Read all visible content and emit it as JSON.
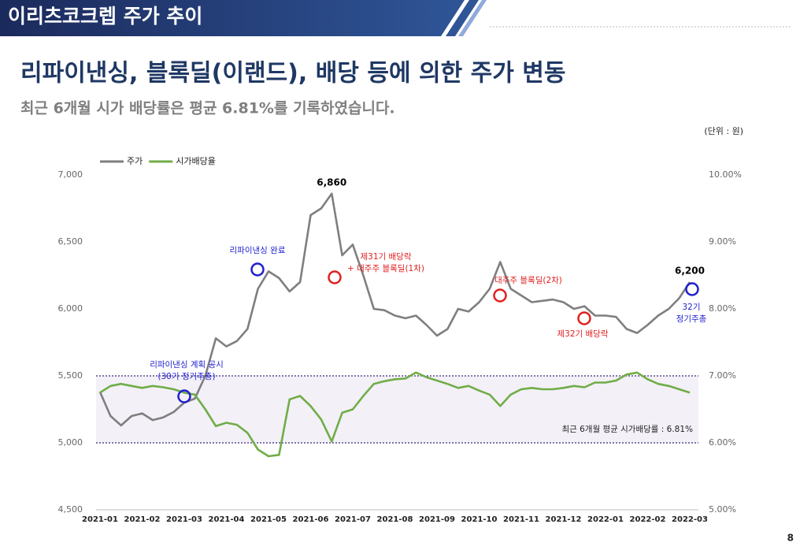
{
  "header": {
    "title": "이리츠코크렙 주가 추이"
  },
  "heading": "리파이낸싱, 블록딜(이랜드), 배당 등에 의한 주가 변동",
  "subtitle": "최근 6개월 시가 배당률은 평균 6.81%를 기록하였습니다.",
  "unit": "(단위 : 원)",
  "page_number": 8,
  "chart_data": {
    "type": "line",
    "categories": [
      "2021-01",
      null,
      null,
      null,
      "2021-02",
      null,
      null,
      null,
      "2021-03",
      null,
      null,
      null,
      "2021-04",
      null,
      null,
      null,
      "2021-05",
      null,
      null,
      null,
      "2021-06",
      null,
      null,
      null,
      "2021-07",
      null,
      null,
      null,
      "2021-08",
      null,
      null,
      null,
      "2021-09",
      null,
      null,
      null,
      "2021-10",
      null,
      null,
      null,
      "2021-11",
      null,
      null,
      null,
      "2021-12",
      null,
      null,
      null,
      "2022-01",
      null,
      null,
      null,
      "2022-02",
      null,
      null,
      null,
      "2022-03"
    ],
    "series": [
      {
        "name": "주가",
        "color": "#7f7f7f",
        "values": [
          5380,
          5200,
          5130,
          5200,
          5220,
          5170,
          5190,
          5230,
          5300,
          5330,
          5500,
          5780,
          5720,
          5760,
          5850,
          6150,
          6280,
          6230,
          6130,
          6200,
          6700,
          6750,
          6860,
          6400,
          6480,
          6250,
          6000,
          5990,
          5950,
          5930,
          5950,
          5880,
          5800,
          5850,
          6000,
          5980,
          6050,
          6150,
          6350,
          6150,
          6100,
          6050,
          6060,
          6070,
          6050,
          6000,
          6020,
          5950,
          5950,
          5940,
          5850,
          5820,
          5880,
          5950,
          6000,
          6080,
          6200
        ],
        "value_labels": [
          null,
          null,
          null,
          null,
          null,
          null,
          null,
          null,
          null,
          null,
          null,
          null,
          null,
          null,
          null,
          null,
          null,
          null,
          null,
          null,
          null,
          null,
          "6,860",
          null,
          null,
          null,
          null,
          null,
          null,
          null,
          null,
          null,
          null,
          null,
          null,
          null,
          null,
          null,
          null,
          null,
          null,
          null,
          null,
          null,
          null,
          null,
          null,
          null,
          null,
          null,
          null,
          null,
          null,
          null,
          null,
          null,
          "6,200"
        ]
      },
      {
        "name": "시가배당율",
        "color": "#70ad47",
        "axis": "y2",
        "values": [
          6.75,
          6.85,
          6.88,
          6.85,
          6.82,
          6.85,
          6.83,
          6.8,
          6.75,
          6.72,
          6.5,
          6.25,
          6.3,
          6.27,
          6.15,
          5.9,
          5.8,
          5.82,
          6.65,
          6.7,
          6.55,
          6.35,
          6.02,
          6.45,
          6.5,
          6.7,
          6.88,
          6.92,
          6.95,
          6.96,
          7.05,
          6.98,
          6.93,
          6.88,
          6.82,
          6.85,
          6.78,
          6.72,
          6.55,
          6.72,
          6.8,
          6.82,
          6.8,
          6.8,
          6.82,
          6.85,
          6.83,
          6.9,
          6.9,
          6.93,
          7.02,
          7.05,
          6.95,
          6.88,
          6.85,
          6.8,
          6.75
        ]
      }
    ],
    "ylim": [
      4500,
      7000
    ],
    "yticks": [
      {
        "value": 4500,
        "label": "4,500"
      },
      {
        "value": 5000,
        "label": "5,000"
      },
      {
        "value": 5500,
        "label": "5,500"
      },
      {
        "value": 6000,
        "label": "6,000"
      },
      {
        "value": 6500,
        "label": "6,500"
      },
      {
        "value": 7000,
        "label": "7,000"
      }
    ],
    "y2lim": [
      5,
      10
    ],
    "y2ticks": [
      {
        "value": 5,
        "label": "5.00%"
      },
      {
        "value": 6,
        "label": "6.00%"
      },
      {
        "value": 7,
        "label": "7.00%"
      },
      {
        "value": 8,
        "label": "8.00%"
      },
      {
        "value": 9,
        "label": "9.00%"
      },
      {
        "value": 10,
        "label": "10.00%"
      }
    ],
    "band_y2": [
      6,
      7
    ],
    "band_label": "최근 6개월 평균 시가배당률 : 6.81%",
    "annotations": [
      {
        "lines": [
          "리파이낸싱 계획 공시",
          "(30기 정기주총)"
        ],
        "color": "#1f1fd0"
      },
      {
        "lines": [
          "리파이낸싱 완료"
        ],
        "color": "#1f1fd0"
      },
      {
        "lines": [
          "제31기 배당락",
          "+ 대주주 블록딜(1차)"
        ],
        "color": "#e02020"
      },
      {
        "lines": [
          "대주주 블록딜(2차)"
        ],
        "color": "#e02020"
      },
      {
        "lines": [
          "제32기 배당락"
        ],
        "color": "#e02020"
      },
      {
        "lines": [
          "32기",
          "정기주총"
        ],
        "color": "#1f1fd0"
      }
    ]
  }
}
